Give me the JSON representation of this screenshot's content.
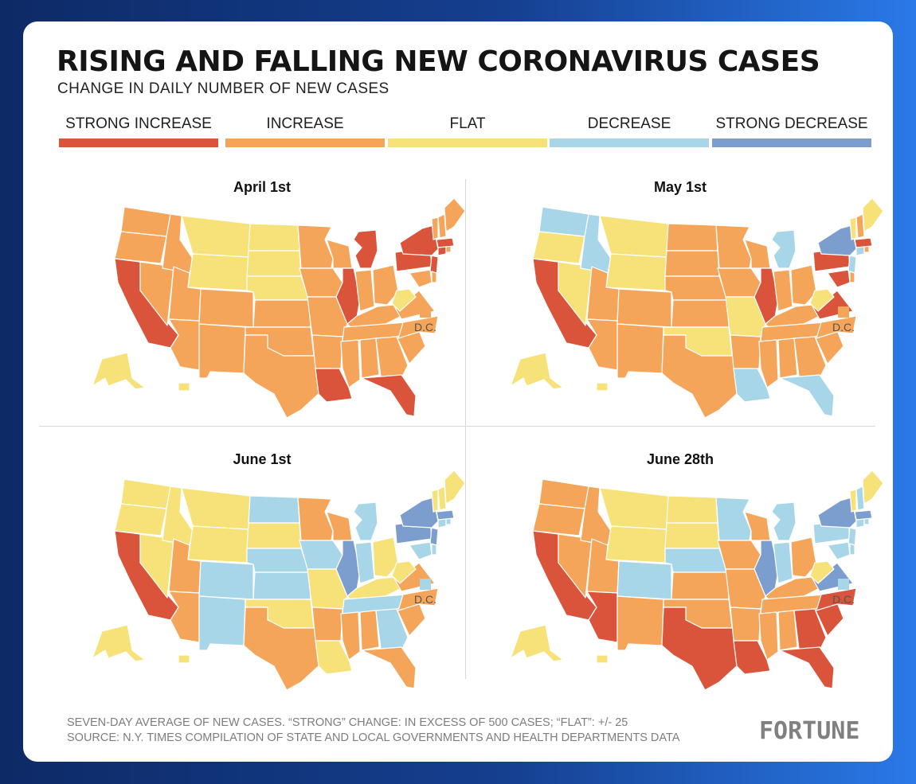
{
  "title": "RISING AND FALLING NEW CORONAVIRUS CASES",
  "subtitle": "CHANGE IN DAILY NUMBER OF NEW CASES",
  "legend": [
    {
      "label": "STRONG INCREASE",
      "color": "#d9543b"
    },
    {
      "label": "INCREASE",
      "color": "#f5a55a"
    },
    {
      "label": "FLAT",
      "color": "#f7e27a"
    },
    {
      "label": "DECREASE",
      "color": "#a7d6e8"
    },
    {
      "label": "STRONG DECREASE",
      "color": "#7c9ecf"
    }
  ],
  "dc_label": "D.C.",
  "panels": [
    {
      "title": "April 1st",
      "dc": "increase",
      "colors": {
        "WA": "increase",
        "OR": "increase",
        "CA": "strong_increase",
        "NV": "increase",
        "ID": "increase",
        "MT": "flat",
        "WY": "flat",
        "UT": "increase",
        "AZ": "increase",
        "CO": "increase",
        "NM": "increase",
        "ND": "flat",
        "SD": "flat",
        "NE": "flat",
        "KS": "increase",
        "OK": "increase",
        "TX": "increase",
        "MN": "increase",
        "IA": "increase",
        "MO": "increase",
        "AR": "increase",
        "LA": "strong_increase",
        "WI": "increase",
        "IL": "strong_increase",
        "MI": "strong_increase",
        "IN": "increase",
        "OH": "increase",
        "KY": "increase",
        "TN": "increase",
        "MS": "increase",
        "AL": "increase",
        "GA": "increase",
        "FL": "strong_increase",
        "SC": "increase",
        "NC": "increase",
        "VA": "increase",
        "WV": "flat",
        "PA": "strong_increase",
        "NY": "strong_increase",
        "NJ": "strong_increase",
        "MD": "increase",
        "DE": "increase",
        "CT": "strong_increase",
        "RI": "increase",
        "MA": "strong_increase",
        "VT": "increase",
        "NH": "increase",
        "ME": "increase",
        "AK": "flat",
        "HI": "flat"
      }
    },
    {
      "title": "May 1st",
      "dc": "increase",
      "colors": {
        "WA": "decrease",
        "OR": "flat",
        "CA": "strong_increase",
        "NV": "flat",
        "ID": "decrease",
        "MT": "flat",
        "WY": "flat",
        "UT": "increase",
        "AZ": "increase",
        "CO": "increase",
        "NM": "increase",
        "ND": "increase",
        "SD": "increase",
        "NE": "increase",
        "KS": "increase",
        "OK": "flat",
        "TX": "increase",
        "MN": "increase",
        "IA": "increase",
        "MO": "flat",
        "AR": "increase",
        "LA": "decrease",
        "WI": "increase",
        "IL": "strong_increase",
        "MI": "decrease",
        "IN": "increase",
        "OH": "increase",
        "KY": "increase",
        "TN": "increase",
        "MS": "increase",
        "AL": "increase",
        "GA": "increase",
        "FL": "decrease",
        "SC": "increase",
        "NC": "increase",
        "VA": "strong_increase",
        "WV": "flat",
        "PA": "strong_increase",
        "NY": "strong_decrease",
        "NJ": "decrease",
        "MD": "strong_increase",
        "DE": "increase",
        "CT": "decrease",
        "RI": "increase",
        "MA": "strong_increase",
        "VT": "flat",
        "NH": "increase",
        "ME": "flat",
        "AK": "flat",
        "HI": "flat"
      }
    },
    {
      "title": "June 1st",
      "dc": "decrease",
      "colors": {
        "WA": "flat",
        "OR": "flat",
        "CA": "strong_increase",
        "NV": "flat",
        "ID": "flat",
        "MT": "flat",
        "WY": "flat",
        "UT": "increase",
        "AZ": "increase",
        "CO": "decrease",
        "NM": "decrease",
        "ND": "decrease",
        "SD": "flat",
        "NE": "decrease",
        "KS": "decrease",
        "OK": "flat",
        "TX": "increase",
        "MN": "increase",
        "IA": "decrease",
        "MO": "flat",
        "AR": "increase",
        "LA": "flat",
        "WI": "increase",
        "IL": "strong_decrease",
        "MI": "decrease",
        "IN": "decrease",
        "OH": "flat",
        "KY": "flat",
        "TN": "decrease",
        "MS": "increase",
        "AL": "increase",
        "GA": "decrease",
        "FL": "increase",
        "SC": "increase",
        "NC": "increase",
        "VA": "increase",
        "WV": "flat",
        "PA": "strong_decrease",
        "NY": "strong_decrease",
        "NJ": "strong_decrease",
        "MD": "decrease",
        "DE": "decrease",
        "CT": "decrease",
        "RI": "decrease",
        "MA": "strong_decrease",
        "VT": "flat",
        "NH": "flat",
        "ME": "flat",
        "AK": "flat",
        "HI": "flat"
      }
    },
    {
      "title": "June 28th",
      "dc": "decrease",
      "colors": {
        "WA": "increase",
        "OR": "increase",
        "CA": "strong_increase",
        "NV": "increase",
        "ID": "increase",
        "MT": "flat",
        "WY": "flat",
        "UT": "increase",
        "AZ": "strong_increase",
        "CO": "decrease",
        "NM": "increase",
        "ND": "flat",
        "SD": "flat",
        "NE": "decrease",
        "KS": "increase",
        "OK": "increase",
        "TX": "strong_increase",
        "MN": "decrease",
        "IA": "increase",
        "MO": "increase",
        "AR": "increase",
        "LA": "strong_increase",
        "WI": "increase",
        "IL": "strong_decrease",
        "MI": "decrease",
        "IN": "decrease",
        "OH": "increase",
        "KY": "increase",
        "TN": "increase",
        "MS": "increase",
        "AL": "increase",
        "GA": "strong_increase",
        "FL": "strong_increase",
        "SC": "strong_increase",
        "NC": "strong_increase",
        "VA": "strong_decrease",
        "WV": "flat",
        "PA": "decrease",
        "NY": "strong_decrease",
        "NJ": "decrease",
        "MD": "decrease",
        "DE": "decrease",
        "CT": "decrease",
        "RI": "decrease",
        "MA": "strong_decrease",
        "VT": "flat",
        "NH": "decrease",
        "ME": "flat",
        "AK": "flat",
        "HI": "flat"
      }
    }
  ],
  "footnote_line1": "SEVEN-DAY AVERAGE OF NEW CASES. “STRONG” CHANGE: IN EXCESS OF 500 CASES; “FLAT”: +/- 25",
  "footnote_line2": "SOURCE: N.Y. TIMES COMPILATION OF STATE AND LOCAL GOVERNMENTS AND HEALTH DEPARTMENTS DATA",
  "brand": "FORTUNE"
}
